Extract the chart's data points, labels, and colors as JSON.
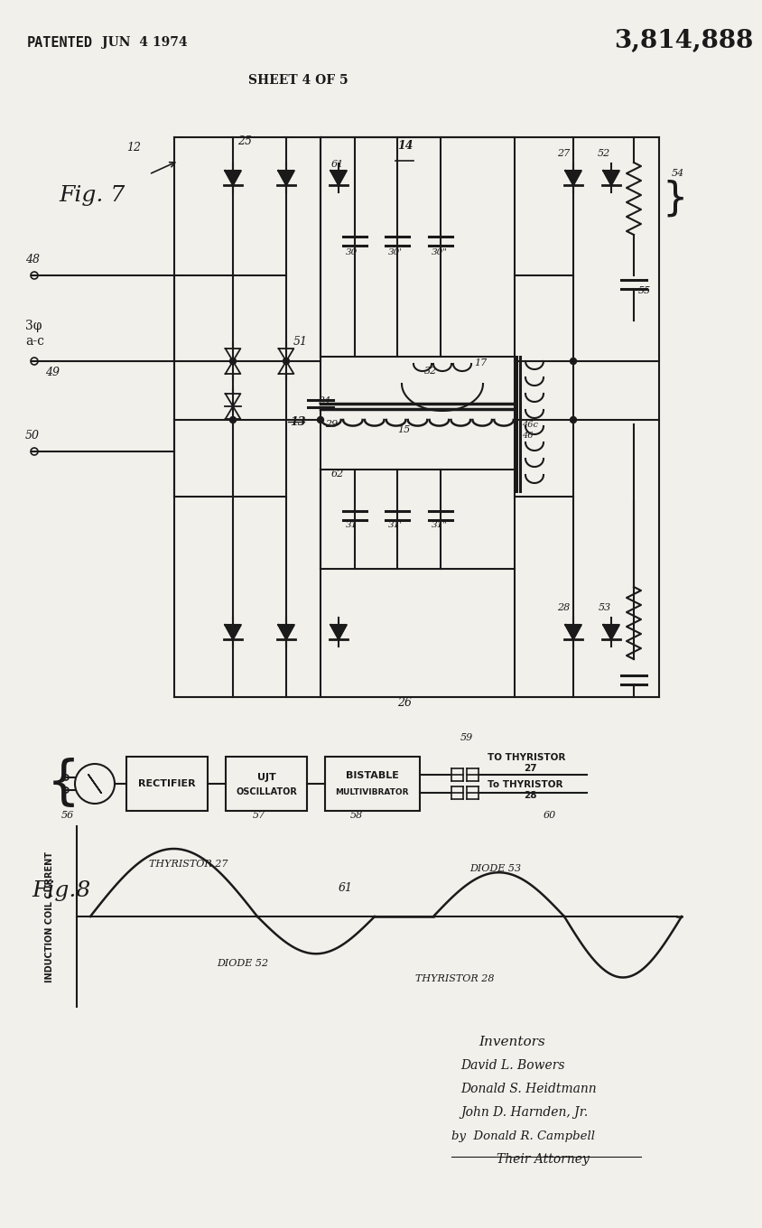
{
  "bg_color": "#f2f0eb",
  "line_color": "#1a1a1a",
  "title_patent": "PATENTED",
  "title_patent2": "JUN  4 1974",
  "patent_number": "3,814,888",
  "sheet": "SHEET 4 OF 5",
  "fig7_label": "Fig. 7",
  "fig8_label": "Fig.8",
  "inventors_lines": [
    "Inventors",
    "David L. Bowers",
    "Donald S. Heidtmann",
    "John D. Harnden, Jr.",
    "by  Donald R. Campbell",
    "Their Attorney"
  ]
}
